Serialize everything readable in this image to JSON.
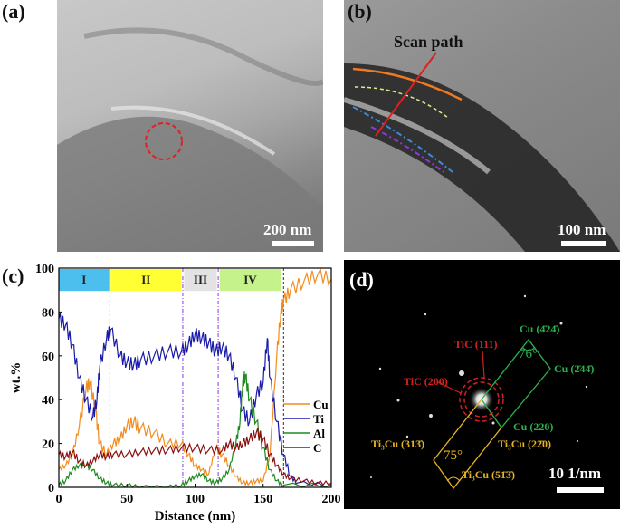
{
  "panels": {
    "a": {
      "label": "(a)",
      "scale_bar": "200 nm"
    },
    "b": {
      "label": "(b)",
      "scale_bar": "100 nm",
      "annotation": "Scan path"
    },
    "c": {
      "label": "(c)"
    },
    "d": {
      "label": "(d)",
      "scale_bar": "10 1/nm",
      "annotations": {
        "tic111": "TiC (111)",
        "tic200": "TiC (200)",
        "cu_244": "Cu (2̄44̄)",
        "cu_424": "Cu (4̄24̄)",
        "cu_220": "Cu (220)",
        "ti3cu_313": "Ti₃Cu (313̄)",
        "ti3cu_220": "Ti₃Cu (22̄0)",
        "ti3cu_513": "Ti₃Cu (51̄3̄)",
        "angle_cu": "76°",
        "angle_ti3cu": "75°"
      }
    }
  },
  "chart_data": {
    "type": "line",
    "xlabel": "Distance (nm)",
    "ylabel": "wt.%",
    "xlim": [
      0,
      200
    ],
    "ylim": [
      0,
      100
    ],
    "xticks": [
      0,
      50,
      100,
      150,
      200
    ],
    "yticks": [
      0,
      20,
      40,
      60,
      80,
      100
    ],
    "legend_position": "right",
    "regions": [
      {
        "name": "I",
        "start": 0,
        "end": 37,
        "color": "#4dbfee"
      },
      {
        "name": "II",
        "start": 38,
        "end": 90,
        "color": "#ffff33"
      },
      {
        "name": "III",
        "start": 92,
        "end": 116,
        "color": "#e3e3e3"
      },
      {
        "name": "IV",
        "start": 118,
        "end": 163,
        "color": "#c6f28c"
      }
    ],
    "boundaries": [
      {
        "x": 37.5,
        "style": "black-dash"
      },
      {
        "x": 91,
        "style": "purple-dashdot"
      },
      {
        "x": 117,
        "style": "purple-dashdot"
      },
      {
        "x": 165,
        "style": "black-dash"
      }
    ],
    "series": [
      {
        "name": "Cu",
        "color": "#f28c1e",
        "x": [
          0,
          5,
          10,
          15,
          20,
          23,
          27,
          30,
          35,
          40,
          45,
          50,
          55,
          60,
          70,
          80,
          90,
          95,
          100,
          105,
          110,
          115,
          120,
          125,
          130,
          135,
          140,
          145,
          150,
          155,
          160,
          163,
          165,
          170,
          180,
          190,
          200
        ],
        "y": [
          8,
          10,
          15,
          28,
          45,
          48,
          35,
          20,
          15,
          20,
          22,
          28,
          30,
          27,
          25,
          20,
          20,
          15,
          10,
          8,
          6,
          18,
          15,
          10,
          5,
          2,
          2,
          3,
          3,
          15,
          60,
          80,
          85,
          90,
          94,
          97,
          95
        ]
      },
      {
        "name": "Ti",
        "color": "#1a1aa8",
        "x": [
          0,
          5,
          10,
          15,
          20,
          25,
          28,
          30,
          35,
          38,
          45,
          50,
          55,
          60,
          70,
          80,
          90,
          95,
          100,
          105,
          110,
          115,
          120,
          125,
          130,
          135,
          140,
          145,
          150,
          153,
          155,
          160,
          165,
          170,
          175,
          200
        ],
        "y": [
          77,
          74,
          65,
          50,
          40,
          32,
          40,
          55,
          68,
          72,
          60,
          57,
          56,
          58,
          60,
          62,
          62,
          65,
          70,
          68,
          66,
          62,
          64,
          60,
          50,
          35,
          30,
          42,
          48,
          68,
          50,
          30,
          15,
          5,
          2,
          1
        ]
      },
      {
        "name": "Al",
        "color": "#1f8a1f",
        "x": [
          0,
          5,
          10,
          15,
          20,
          25,
          30,
          35,
          40,
          50,
          60,
          80,
          90,
          95,
          100,
          105,
          110,
          115,
          120,
          125,
          130,
          133,
          135,
          137,
          140,
          145,
          150,
          155,
          160,
          165,
          200
        ],
        "y": [
          1,
          3,
          8,
          10,
          10,
          8,
          4,
          2,
          1,
          1,
          0,
          0,
          1,
          3,
          5,
          6,
          3,
          2,
          4,
          8,
          20,
          30,
          48,
          51,
          40,
          30,
          18,
          8,
          3,
          1,
          1
        ]
      },
      {
        "name": "C",
        "color": "#8b1010",
        "x": [
          0,
          5,
          10,
          15,
          20,
          25,
          30,
          35,
          40,
          50,
          60,
          70,
          80,
          90,
          100,
          110,
          120,
          125,
          130,
          135,
          140,
          145,
          150,
          155,
          160,
          165,
          170,
          180,
          190,
          200
        ],
        "y": [
          15,
          14,
          16,
          12,
          10,
          12,
          15,
          14,
          15,
          15,
          16,
          17,
          17,
          18,
          18,
          17,
          17,
          20,
          18,
          20,
          22,
          25,
          22,
          15,
          10,
          6,
          4,
          3,
          2,
          2
        ]
      }
    ]
  }
}
